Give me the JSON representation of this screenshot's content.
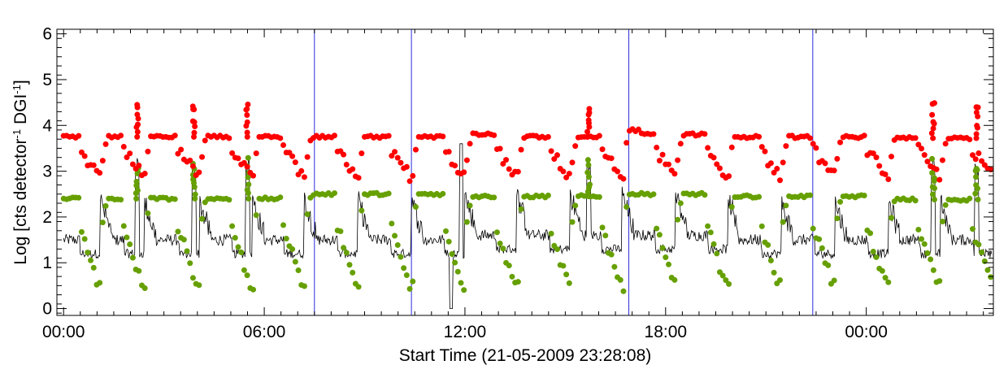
{
  "chart_data": {
    "type": "scatter",
    "xlabel": "Start Time (21-05-2009 23:28:08)",
    "ylabel": {
      "base": "Log [cts detector",
      "sup1": "-1",
      "mid": " DGI",
      "sup2": "-1",
      "end": "]"
    },
    "xlim": [
      -0.2,
      27.8
    ],
    "ylim": [
      -0.15,
      6.1
    ],
    "x_unit": "hours from start",
    "x_ticks": [
      {
        "value": 0,
        "label": "00:00"
      },
      {
        "value": 6,
        "label": "06:00"
      },
      {
        "value": 12,
        "label": "12:00"
      },
      {
        "value": 18,
        "label": "18:00"
      },
      {
        "value": 24,
        "label": "00:00"
      }
    ],
    "y_ticks": [
      {
        "value": 0,
        "label": "0"
      },
      {
        "value": 1,
        "label": "1"
      },
      {
        "value": 2,
        "label": "2"
      },
      {
        "value": 3,
        "label": "3"
      },
      {
        "value": 4,
        "label": "4"
      },
      {
        "value": 5,
        "label": "5"
      },
      {
        "value": 6,
        "label": "6"
      }
    ],
    "vertical_markers_hours": [
      7.5,
      10.4,
      16.9,
      22.4
    ],
    "dip_hours": [
      1.0,
      2.3,
      3.95,
      5.55,
      7.1,
      8.7,
      10.3,
      11.9,
      13.45,
      15.05,
      16.6,
      18.2,
      19.75,
      21.35,
      22.95,
      24.55,
      26.1,
      27.7
    ],
    "peak_hours": [
      2.2,
      3.9,
      5.5,
      15.7,
      26.0,
      27.3
    ],
    "series": [
      {
        "color": "#ff0000",
        "style": "dots",
        "baseline": 3.75,
        "dip_min": 2.9,
        "peak_max": 4.6,
        "baseline_segments": [
          [
            0,
            3.75
          ],
          [
            11.6,
            3.8
          ],
          [
            13.2,
            3.75
          ],
          [
            16.5,
            3.9
          ],
          [
            17.2,
            3.8
          ],
          [
            20.0,
            3.75
          ],
          [
            24.0,
            3.72
          ],
          [
            27.8,
            3.65
          ]
        ]
      },
      {
        "color": "#66a000",
        "style": "dots",
        "baseline": 2.4,
        "dip_min": 0.5,
        "peak_max": 3.3,
        "baseline_segments": [
          [
            0,
            2.4
          ],
          [
            7.0,
            2.5
          ],
          [
            12.0,
            2.45
          ],
          [
            16.5,
            2.5
          ],
          [
            20.0,
            2.45
          ],
          [
            24.0,
            2.38
          ],
          [
            27.8,
            2.35
          ]
        ]
      },
      {
        "color": "#000000",
        "style": "line",
        "baseline": 1.5,
        "dip_min": 1.1,
        "peak_max": 3.0
      }
    ]
  }
}
